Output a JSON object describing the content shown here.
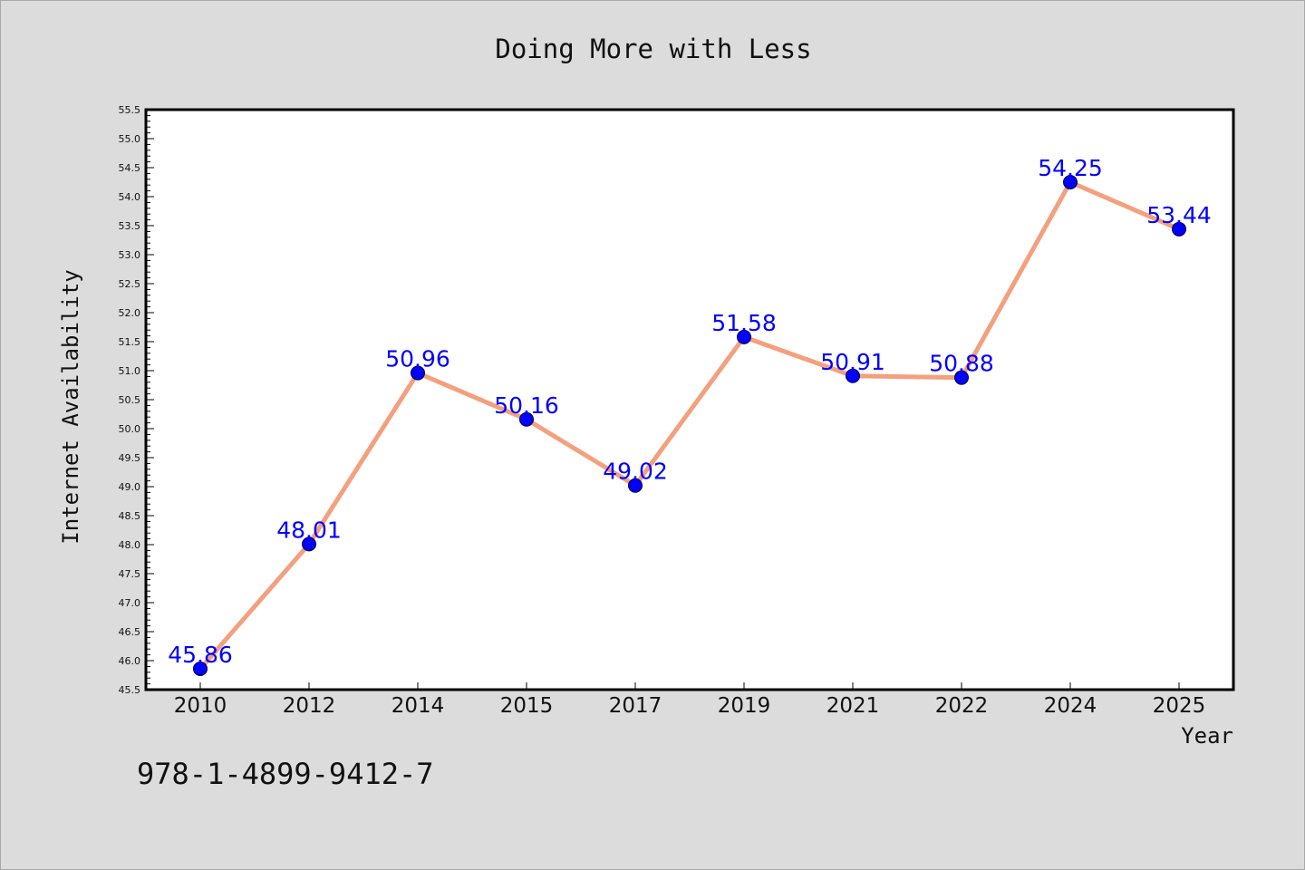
{
  "chart_data": {
    "type": "line",
    "title": "Doing More with Less",
    "xlabel": "Year",
    "ylabel": "Internet Availability",
    "categories": [
      "2010",
      "2012",
      "2014",
      "2015",
      "2017",
      "2019",
      "2021",
      "2022",
      "2024",
      "2025"
    ],
    "series": [
      {
        "values": [
          45.86,
          48.01,
          50.96,
          50.16,
          49.02,
          51.58,
          50.91,
          50.88,
          54.25,
          53.44
        ],
        "labels": [
          "45.86",
          "48.01",
          "50.96",
          "50.16",
          "49.02",
          "51.58",
          "50.91",
          "50.88",
          "54.25",
          "53.44"
        ],
        "line_color": "#f4a07e",
        "marker_color": "#0000ff"
      }
    ],
    "ylim": [
      45.5,
      55.5
    ],
    "yticks": [
      45.5,
      46.0,
      46.5,
      47.0,
      47.5,
      48.0,
      48.5,
      49.0,
      49.5,
      50.0,
      50.5,
      51.0,
      51.5,
      52.0,
      52.5,
      53.0,
      53.5,
      54.0,
      54.5,
      55.0,
      55.5
    ],
    "ytick_labels": [
      "45.5",
      "46.0",
      "46.5",
      "47.0",
      "47.5",
      "48.0",
      "48.5",
      "49.0",
      "49.5",
      "50.0",
      "50.5",
      "51.0",
      "51.5",
      "52.0",
      "52.5",
      "53.0",
      "53.5",
      "54.0",
      "54.5",
      "55.0",
      "55.5"
    ],
    "grid": false,
    "legend": "none"
  },
  "footer": {
    "isbn": "978-1-4899-9412-7"
  },
  "colors": {
    "background": "#dcdcdc",
    "plot_background": "#ffffff",
    "axis": "#000000",
    "line": "#f4a07e",
    "marker": "#0000ff",
    "data_label": "#0000ff"
  }
}
